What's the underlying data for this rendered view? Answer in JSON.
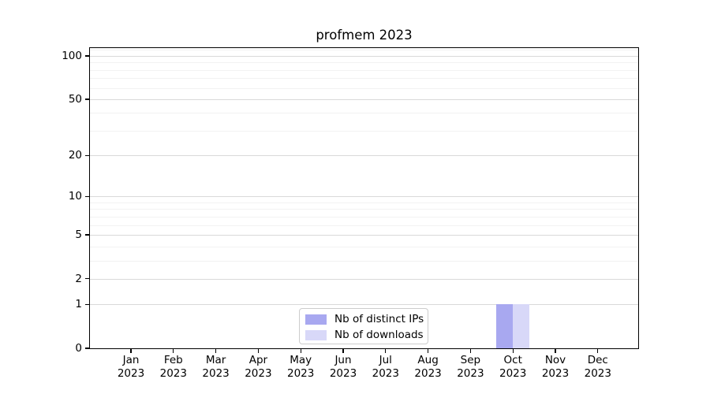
{
  "chart_data": {
    "type": "bar",
    "title": "profmem 2023",
    "categories": [
      "Jan 2023",
      "Feb 2023",
      "Mar 2023",
      "Apr 2023",
      "May 2023",
      "Jun 2023",
      "Jul 2023",
      "Aug 2023",
      "Sep 2023",
      "Oct 2023",
      "Nov 2023",
      "Dec 2023"
    ],
    "series": [
      {
        "name": "Nb of distinct IPs",
        "color": "#a8a8f0",
        "values": [
          0,
          0,
          0,
          0,
          0,
          0,
          0,
          0,
          0,
          1,
          0,
          0
        ]
      },
      {
        "name": "Nb of downloads",
        "color": "#d8d8f8",
        "values": [
          0,
          0,
          0,
          0,
          0,
          0,
          0,
          0,
          0,
          1,
          0,
          0
        ]
      }
    ],
    "xlabel": "",
    "ylabel": "",
    "yscale": "log1p",
    "ylim": [
      0,
      113.4
    ],
    "y_ticks": [
      0,
      1,
      2,
      5,
      10,
      20,
      50,
      100
    ],
    "y_minor_ticks": [
      3,
      4,
      6,
      7,
      8,
      9,
      30,
      40,
      60,
      70,
      80,
      90,
      110
    ],
    "grid": {
      "major_color": "#d9d9d9",
      "minor_color": "#f2f2f2"
    },
    "legend_position": "inside-lower-center"
  }
}
